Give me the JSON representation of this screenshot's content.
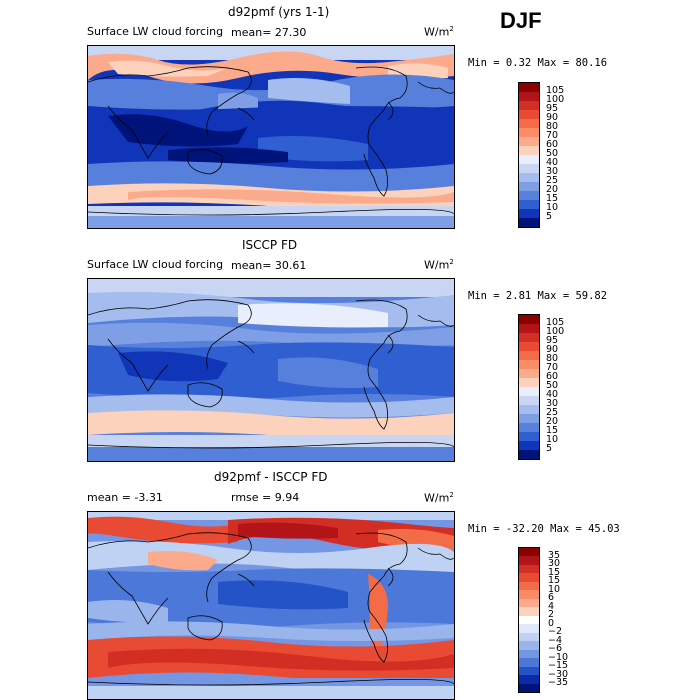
{
  "season": "DJF",
  "panels": [
    {
      "title": "d92pmf (yrs 1-1)",
      "field": "Surface LW cloud forcing",
      "stat1": "mean=  27.30",
      "stat2": "",
      "units": "W/m",
      "units_sup": "2",
      "range": "Min =   0.32 Max =  80.16",
      "levels": [
        "105",
        "100",
        "95",
        "90",
        "80",
        "70",
        "60",
        "50",
        "40",
        "30",
        "25",
        "20",
        "15",
        "10",
        "5"
      ],
      "colors": [
        "#8b0000",
        "#b3141a",
        "#d32e24",
        "#e94a33",
        "#f46b48",
        "#f98b67",
        "#fbaa8c",
        "#fcd2bd",
        "#e8eefb",
        "#c8d6f4",
        "#a5bcee",
        "#7e9fe6",
        "#5780dc",
        "#2f5fd0",
        "#1035b8",
        "#00137a"
      ]
    },
    {
      "title": "ISCCP FD",
      "field": "Surface LW cloud forcing",
      "stat1": "mean=  30.61",
      "stat2": "",
      "units": "W/m",
      "units_sup": "2",
      "range": "Min =   2.81 Max =  59.82",
      "levels": [
        "105",
        "100",
        "95",
        "90",
        "80",
        "70",
        "60",
        "50",
        "40",
        "30",
        "25",
        "20",
        "15",
        "10",
        "5"
      ],
      "colors": [
        "#8b0000",
        "#b3141a",
        "#d32e24",
        "#e94a33",
        "#f46b48",
        "#f98b67",
        "#fbaa8c",
        "#fcd2bd",
        "#e8eefb",
        "#c8d6f4",
        "#a5bcee",
        "#7e9fe6",
        "#5780dc",
        "#2f5fd0",
        "#1035b8",
        "#00137a"
      ]
    },
    {
      "title": "d92pmf - ISCCP FD",
      "field": "",
      "stat1": "mean =  -3.31",
      "stat2": "rmse =   9.94",
      "units": "W/m",
      "units_sup": "2",
      "range": "Min = -32.20 Max =  45.03",
      "levels": [
        "35",
        "30",
        "15",
        "15",
        "10",
        "6",
        "4",
        "2",
        "0",
        "−2",
        "−4",
        "−6",
        "−10",
        "−15",
        "−30",
        "−35"
      ],
      "colors": [
        "#8b0000",
        "#b3141a",
        "#d32e24",
        "#e94a33",
        "#f46b48",
        "#f98b67",
        "#fbaa8c",
        "#fcd2bd",
        "#ffffff",
        "#dfe8fa",
        "#c0d2f3",
        "#9ab5ec",
        "#7597e3",
        "#4c78d9",
        "#2452c7",
        "#0d2aa8",
        "#00137a"
      ]
    }
  ],
  "chart_data": {
    "type": "heatmap",
    "title": "DJF",
    "maps": [
      {
        "name": "d92pmf (yrs 1-1)",
        "variable": "Surface LW cloud forcing",
        "mean": 27.3,
        "min": 0.32,
        "max": 80.16,
        "units": "W/m2",
        "contour_levels": [
          5,
          10,
          15,
          20,
          25,
          30,
          40,
          50,
          60,
          70,
          80,
          90,
          95,
          100,
          105
        ]
      },
      {
        "name": "ISCCP FD",
        "variable": "Surface LW cloud forcing",
        "mean": 30.61,
        "min": 2.81,
        "max": 59.82,
        "units": "W/m2",
        "contour_levels": [
          5,
          10,
          15,
          20,
          25,
          30,
          40,
          50,
          60,
          70,
          80,
          90,
          95,
          100,
          105
        ]
      },
      {
        "name": "d92pmf - ISCCP FD",
        "mean": -3.31,
        "rmse": 9.94,
        "min": -32.2,
        "max": 45.03,
        "units": "W/m2",
        "contour_levels": [
          -35,
          -30,
          -15,
          -10,
          -6,
          -4,
          -2,
          0,
          2,
          4,
          6,
          10,
          15,
          15,
          30,
          35
        ]
      }
    ]
  }
}
